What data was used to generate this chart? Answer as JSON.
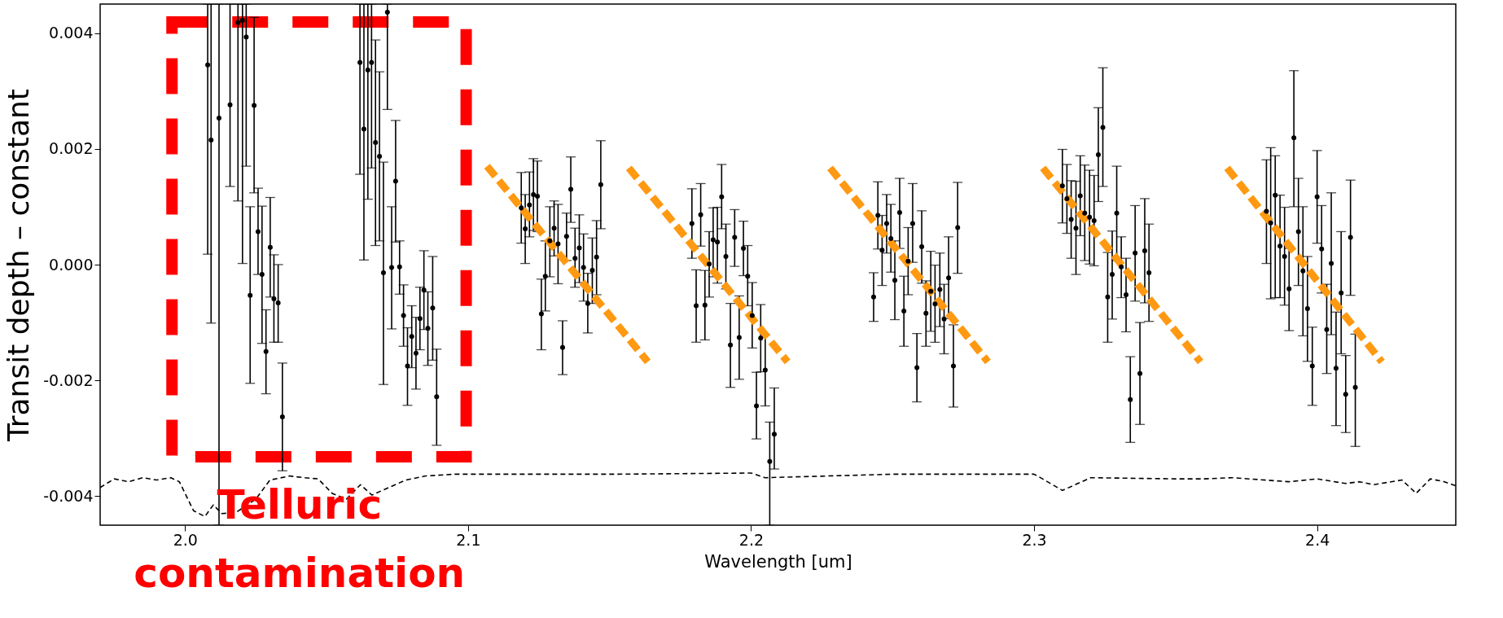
{
  "chart_data": {
    "type": "scatter",
    "xlabel": "Wavelength [um]",
    "ylabel": "Transit depth – constant",
    "xlim": [
      1.97,
      2.449
    ],
    "ylim": [
      -0.0045,
      0.0045
    ],
    "xticks": [
      {
        "value": 2.0,
        "label": "2.0"
      },
      {
        "value": 2.1,
        "label": "2.1"
      },
      {
        "value": 2.2,
        "label": "2.2"
      },
      {
        "value": 2.3,
        "label": "2.3"
      },
      {
        "value": 2.4,
        "label": "2.4"
      }
    ],
    "yticks": [
      {
        "value": -0.004,
        "label": "-0.004"
      },
      {
        "value": -0.002,
        "label": "-0.002"
      },
      {
        "value": 0.0,
        "label": "0.000"
      },
      {
        "value": 0.002,
        "label": "0.002"
      },
      {
        "value": 0.004,
        "label": "0.004"
      }
    ],
    "grid": false,
    "annotations": [
      "Telluric contamination"
    ],
    "series": [
      {
        "marker": "circle",
        "color": "#000000",
        "x": [
          2.008,
          2.0092,
          2.012,
          2.0159,
          2.0187,
          2.0203,
          2.0216,
          2.023,
          2.0244,
          2.0258,
          2.0272,
          2.0286,
          2.0301,
          2.0314,
          2.0329,
          2.0344,
          2.0618,
          2.0632,
          2.0646,
          2.0659,
          2.0673,
          2.0687,
          2.0701,
          2.0715,
          2.073,
          2.0744,
          2.0758,
          2.0772,
          2.0786,
          2.0801,
          2.0816,
          2.083,
          2.0844,
          2.0858,
          2.0875,
          2.0889,
          2.1188,
          2.1202,
          2.1217,
          2.1231,
          2.1245,
          2.1259,
          2.1273,
          2.1289,
          2.1304,
          2.1318,
          2.1334,
          2.1348,
          2.1363,
          2.1378,
          2.1393,
          2.1408,
          2.1423,
          2.1439,
          2.1454,
          2.1469,
          2.1791,
          2.1806,
          2.1822,
          2.1837,
          2.1852,
          2.1866,
          2.1881,
          2.1896,
          2.1911,
          2.1927,
          2.1942,
          2.1958,
          2.1973,
          2.1988,
          2.2004,
          2.2019,
          2.2034,
          2.205,
          2.2066,
          2.2082,
          2.2433,
          2.2448,
          2.2463,
          2.2479,
          2.2494,
          2.2508,
          2.2525,
          2.254,
          2.2555,
          2.2571,
          2.2586,
          2.2603,
          2.2618,
          2.2635,
          2.265,
          2.2667,
          2.2682,
          2.2698,
          2.2715,
          2.273,
          2.31,
          2.3116,
          2.3131,
          2.3148,
          2.3163,
          2.3179,
          2.3196,
          2.3212,
          2.3227,
          2.3243,
          2.326,
          2.3276,
          2.3292,
          2.3308,
          2.3325,
          2.334,
          2.3357,
          2.3374,
          2.3391,
          2.3406,
          2.3821,
          2.3836,
          2.3852,
          2.3869,
          2.3885,
          2.3901,
          2.3918,
          2.3934,
          2.395,
          2.3966,
          2.3983,
          2.4,
          2.4016,
          2.4034,
          2.405,
          2.4067,
          2.4085,
          2.4101,
          2.4118,
          2.4135
        ],
        "values": [
          0.00345,
          0.00215,
          0.00253,
          0.00276,
          0.00418,
          0.00422,
          0.00393,
          -0.00053,
          0.00275,
          0.00057,
          -0.00017,
          -0.0015,
          0.0003,
          -0.00059,
          -0.00066,
          -0.00263,
          0.00349,
          0.00234,
          0.00336,
          0.00349,
          0.00211,
          0.00187,
          -0.00014,
          0.00436,
          -5e-05,
          0.00144,
          -4e-05,
          -0.00088,
          -0.00175,
          -0.00124,
          -0.00153,
          -0.00093,
          -0.00044,
          -0.0011,
          -0.00075,
          -0.00228,
          0.00098,
          0.00062,
          0.00103,
          0.00121,
          0.00118,
          -0.00085,
          -0.0002,
          0.00041,
          0.00063,
          0.00036,
          -0.00143,
          0.00049,
          0.0013,
          0.00011,
          0.00029,
          -5e-05,
          -0.00067,
          -0.0001,
          0.00013,
          0.00138,
          0.00071,
          -0.00071,
          0.00086,
          -0.0007,
          1e-05,
          0.00043,
          0.00039,
          0.00117,
          0.00014,
          -0.00139,
          0.00047,
          -0.00126,
          0.00028,
          -0.0002,
          -0.00088,
          -0.00244,
          -0.00127,
          -0.00182,
          -0.0034,
          -0.00293,
          -0.00056,
          0.00085,
          0.00025,
          0.00071,
          0.00045,
          -0.00027,
          0.0009,
          -0.0008,
          6e-05,
          0.00071,
          -0.00178,
          0.00031,
          -0.00084,
          -0.00046,
          -0.00068,
          -0.00043,
          -0.00094,
          -0.00023,
          -0.00175,
          0.00064,
          0.00136,
          0.00114,
          0.00078,
          0.00063,
          0.00119,
          0.00089,
          0.00082,
          0.00076,
          0.0019,
          0.00237,
          -0.00056,
          -0.00017,
          0.00089,
          -4e-05,
          -0.00052,
          -0.00233,
          0.0002,
          -0.00188,
          0.00024,
          -0.00014,
          0.00092,
          0.00072,
          0.0012,
          0.00032,
          0.00014,
          -0.00042,
          0.00219,
          0.00057,
          -0.00011,
          -0.00076,
          -0.00175,
          0.00117,
          0.00027,
          -0.00112,
          2e-05,
          -0.00179,
          -0.00049,
          -0.00224,
          0.00047,
          -0.00212
        ],
        "errors": [
          [
            0.00018,
            0.0045
          ],
          [
            -0.00101,
            0.0045
          ],
          [
            -0.0045,
            0.0045
          ],
          [
            0.00135,
            0.0045
          ],
          [
            0.0011,
            0.0045
          ],
          [
            2e-05,
            0.0045
          ],
          [
            0.0017,
            0.0045
          ],
          [
            -0.00205,
            0.001
          ],
          [
            0.00124,
            0.00427
          ],
          [
            -0.00017,
            0.00132
          ],
          [
            -0.00136,
            0.00101
          ],
          [
            -0.00223,
            -0.00078
          ],
          [
            -0.00056,
            0.00116
          ],
          [
            -0.00134,
            0.00017
          ],
          [
            -0.00134,
            0.0
          ],
          [
            -0.00356,
            -0.0017
          ],
          [
            0.00156,
            0.0045
          ],
          [
            8e-05,
            0.0045
          ],
          [
            0.00113,
            0.0045
          ],
          [
            0.00167,
            0.0045
          ],
          [
            0.00033,
            0.00388
          ],
          [
            0.00041,
            0.00333
          ],
          [
            -0.00207,
            0.00177
          ],
          [
            0.00268,
            0.0045
          ],
          [
            -0.00111,
            0.001
          ],
          [
            0.00039,
            0.00249
          ],
          [
            -0.00051,
            0.00041
          ],
          [
            -0.00141,
            -0.00035
          ],
          [
            -0.00243,
            -0.00109
          ],
          [
            -0.00178,
            -0.00071
          ],
          [
            -0.00215,
            -0.00091
          ],
          [
            -0.00147,
            -0.00039
          ],
          [
            -0.00112,
            0.00024
          ],
          [
            -0.00174,
            -0.00047
          ],
          [
            -0.00165,
            0.00014
          ],
          [
            -0.00312,
            -0.00146
          ],
          [
            0.00037,
            0.00159
          ],
          [
            2e-05,
            0.00121
          ],
          [
            0.00048,
            0.0016
          ],
          [
            0.00059,
            0.00183
          ],
          [
            0.00057,
            0.00179
          ],
          [
            -0.00147,
            -0.00025
          ],
          [
            -0.0008,
            0.00041
          ],
          [
            -0.00021,
            0.001
          ],
          [
            0.00015,
            0.0011
          ],
          [
            -0.00033,
            0.00104
          ],
          [
            -0.0019,
            -0.00097
          ],
          [
            7e-05,
            0.00089
          ],
          [
            0.00073,
            0.00186
          ],
          [
            -0.00039,
            0.00063
          ],
          [
            -0.00031,
            0.00086
          ],
          [
            -0.00063,
            0.00053
          ],
          [
            -0.00118,
            -0.00015
          ],
          [
            -0.00067,
            0.00046
          ],
          [
            -0.00052,
            0.00076
          ],
          [
            0.00062,
            0.00214
          ],
          [
            0.00011,
            0.00131
          ],
          [
            -0.00134,
            -9e-05
          ],
          [
            0.00032,
            0.0014
          ],
          [
            -0.0013,
            -0.0001
          ],
          [
            -0.00056,
            0.00057
          ],
          [
            -0.00021,
            0.00098
          ],
          [
            -0.00032,
            0.00099
          ],
          [
            0.00062,
            0.00173
          ],
          [
            -0.00042,
            0.0007
          ],
          [
            -0.00212,
            -0.00067
          ],
          [
            -3e-05,
            0.00095
          ],
          [
            -0.00198,
            -0.00054
          ],
          [
            -0.00019,
            0.00075
          ],
          [
            -0.00071,
            0.00033
          ],
          [
            -0.00144,
            -0.00031
          ],
          [
            -0.00301,
            -0.00186
          ],
          [
            -0.00185,
            -0.00069
          ],
          [
            -0.00244,
            -0.00121
          ],
          [
            -0.0045,
            -0.00272
          ],
          [
            -0.00353,
            -0.00213
          ],
          [
            -0.00098,
            -0.00014
          ],
          [
            0.00027,
            0.00143
          ],
          [
            -0.00036,
            0.00085
          ],
          [
            0.0002,
            0.00121
          ],
          [
            -0.00013,
            0.00104
          ],
          [
            -0.00095,
            0.00041
          ],
          [
            0.00028,
            0.00149
          ],
          [
            -0.00141,
            -0.0002
          ],
          [
            -0.00052,
            0.00064
          ],
          [
            4e-05,
            0.0014
          ],
          [
            -0.00237,
            -0.00119
          ],
          [
            -0.00032,
            0.00093
          ],
          [
            -0.00141,
            -0.00028
          ],
          [
            -0.00115,
            0.00023
          ],
          [
            -0.00134,
            -1e-05
          ],
          [
            -0.00107,
            0.0002
          ],
          [
            -0.00154,
            -0.00034
          ],
          [
            -0.00093,
            0.00048
          ],
          [
            -0.00246,
            -0.00104
          ],
          [
            -0.00015,
            0.00142
          ],
          [
            0.00072,
            0.00199
          ],
          [
            0.00054,
            0.00173
          ],
          [
            0.00011,
            0.00145
          ],
          [
            -0.00017,
            0.00144
          ],
          [
            0.0005,
            0.00188
          ],
          [
            7e-05,
            0.00172
          ],
          [
            1e-05,
            0.00163
          ],
          [
            -2e-05,
            0.00154
          ],
          [
            0.00109,
            0.00271
          ],
          [
            0.00135,
            0.0034
          ],
          [
            -0.00134,
            0.00021
          ],
          [
            -0.00094,
            0.00058
          ],
          [
            7e-05,
            0.0017
          ],
          [
            -0.00057,
            0.00048
          ],
          [
            -0.00116,
            0.00011
          ],
          [
            -0.00307,
            -0.00159
          ],
          [
            -0.00063,
            0.00102
          ],
          [
            -0.00276,
            -0.001
          ],
          [
            -0.00066,
            0.00114
          ],
          [
            -0.00098,
            0.0007
          ],
          [
            2e-05,
            0.00181
          ],
          [
            -0.00059,
            0.00202
          ],
          [
            -0.00057,
            0.00188
          ],
          [
            -0.00057,
            0.0012
          ],
          [
            -0.0007,
            0.00099
          ],
          [
            -0.00114,
            0.00028
          ],
          [
            0.001,
            0.00335
          ],
          [
            -0.00036,
            0.00149
          ],
          [
            -0.00123,
            0.001
          ],
          [
            -0.00167,
            0.00014
          ],
          [
            -0.00243,
            -0.00108
          ],
          [
            0.00037,
            0.00197
          ],
          [
            -0.00049,
            0.00102
          ],
          [
            -0.00188,
            -0.00034
          ],
          [
            -0.00121,
            0.00124
          ],
          [
            -0.00278,
            -0.00082
          ],
          [
            -0.00154,
            0.00057
          ],
          [
            -0.0029,
            -0.00157
          ],
          [
            -0.00053,
            0.00146
          ],
          [
            -0.00314,
            -0.0012
          ]
        ]
      },
      {
        "type": "line",
        "color": "#ff9912",
        "line_style": "dashed",
        "x": [
          2.1067,
          2.1635
        ],
        "values": [
          0.0017,
          -0.00168
        ]
      },
      {
        "type": "line",
        "color": "#ff9912",
        "line_style": "dashed",
        "x": [
          2.1568,
          2.2129
        ],
        "values": [
          0.00167,
          -0.00168
        ]
      },
      {
        "type": "line",
        "color": "#ff9912",
        "line_style": "dashed",
        "x": [
          2.2279,
          2.2837
        ],
        "values": [
          0.00167,
          -0.00168
        ]
      },
      {
        "type": "line",
        "color": "#ff9912",
        "line_style": "dashed",
        "x": [
          2.3031,
          2.3588
        ],
        "values": [
          0.00167,
          -0.00168
        ]
      },
      {
        "type": "line",
        "color": "#ff9912",
        "line_style": "dashed",
        "x": [
          2.3682,
          2.4229
        ],
        "values": [
          0.00167,
          -0.00168
        ]
      },
      {
        "type": "line",
        "color": "#000000",
        "line_style": "dotted",
        "x": [
          1.97,
          1.975,
          1.98,
          1.985,
          1.99,
          1.995,
          1.998,
          2.003,
          2.007,
          2.01,
          2.013,
          2.018,
          2.025,
          2.03,
          2.037,
          2.042,
          2.047,
          2.052,
          2.057,
          2.062,
          2.066,
          2.072,
          2.078,
          2.085,
          2.095,
          2.11,
          2.15,
          2.2,
          2.205,
          2.25,
          2.3,
          2.303,
          2.31,
          2.32,
          2.35,
          2.36,
          2.37,
          2.39,
          2.4,
          2.41,
          2.415,
          2.42,
          2.43,
          2.435,
          2.44,
          2.445,
          2.449
        ],
        "values": [
          -0.00385,
          -0.0037,
          -0.00375,
          -0.00368,
          -0.00372,
          -0.00368,
          -0.00375,
          -0.00425,
          -0.00435,
          -0.00415,
          -0.0043,
          -0.00428,
          -0.00405,
          -0.00372,
          -0.00365,
          -0.00368,
          -0.0037,
          -0.00395,
          -0.00405,
          -0.0038,
          -0.00398,
          -0.00385,
          -0.00372,
          -0.00365,
          -0.00362,
          -0.00362,
          -0.00362,
          -0.0036,
          -0.00368,
          -0.00362,
          -0.00362,
          -0.0037,
          -0.0039,
          -0.00368,
          -0.0037,
          -0.0037,
          -0.00368,
          -0.00375,
          -0.0037,
          -0.00378,
          -0.00375,
          -0.0038,
          -0.00372,
          -0.00395,
          -0.0037,
          -0.00375,
          -0.00382
        ]
      }
    ]
  }
}
